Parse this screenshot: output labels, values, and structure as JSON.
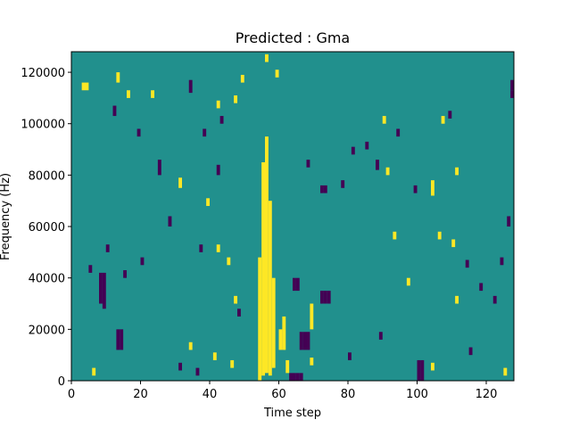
{
  "chart_data": {
    "type": "heatmap",
    "title": "Predicted : Gma",
    "xlabel": "Time step",
    "ylabel": "Frequency (Hz)",
    "xlim": [
      0,
      128
    ],
    "ylim": [
      0,
      128000
    ],
    "x_ticks": [
      0,
      20,
      40,
      60,
      80,
      100,
      120
    ],
    "x_tick_labels": [
      "0",
      "20",
      "40",
      "60",
      "80",
      "100",
      "120"
    ],
    "y_ticks": [
      0,
      20000,
      40000,
      60000,
      80000,
      100000,
      120000
    ],
    "y_tick_labels": [
      "0",
      "20000",
      "40000",
      "60000",
      "80000",
      "100000",
      "120000"
    ],
    "n_time_bins": 128,
    "n_freq_bins": 128,
    "colormap": "viridis",
    "background_value": 0,
    "value_colors": {
      "-1": "#440154",
      "0": "#21908d",
      "1": "#fde725"
    },
    "grid": false,
    "cells": [
      {
        "t": 54,
        "f0": 0,
        "f1": 48,
        "v": 1
      },
      {
        "t": 55,
        "f0": 2,
        "f1": 85,
        "v": 1
      },
      {
        "t": 56,
        "f0": 3,
        "f1": 95,
        "v": 1
      },
      {
        "t": 57,
        "f0": 2,
        "f1": 70,
        "v": 1
      },
      {
        "t": 58,
        "f0": 5,
        "f1": 40,
        "v": 1
      },
      {
        "t": 60,
        "f0": 12,
        "f1": 20,
        "v": 1
      },
      {
        "t": 61,
        "f0": 12,
        "f1": 25,
        "v": 1
      },
      {
        "t": 62,
        "f0": 3,
        "f1": 8,
        "v": 1
      },
      {
        "t": 63,
        "f0": 0,
        "f1": 3,
        "v": -1
      },
      {
        "t": 64,
        "f0": 0,
        "f1": 3,
        "v": -1
      },
      {
        "t": 65,
        "f0": 0,
        "f1": 3,
        "v": -1
      },
      {
        "t": 66,
        "f0": 0,
        "f1": 3,
        "v": -1
      },
      {
        "t": 66,
        "f0": 12,
        "f1": 19,
        "v": -1
      },
      {
        "t": 67,
        "f0": 12,
        "f1": 19,
        "v": -1
      },
      {
        "t": 68,
        "f0": 12,
        "f1": 19,
        "v": -1
      },
      {
        "t": 69,
        "f0": 6,
        "f1": 9,
        "v": 1
      },
      {
        "t": 69,
        "f0": 20,
        "f1": 30,
        "v": 1
      },
      {
        "t": 72,
        "f0": 30,
        "f1": 35,
        "v": -1
      },
      {
        "t": 73,
        "f0": 30,
        "f1": 35,
        "v": -1
      },
      {
        "t": 74,
        "f0": 30,
        "f1": 35,
        "v": -1
      },
      {
        "t": 72,
        "f0": 73,
        "f1": 76,
        "v": -1
      },
      {
        "t": 73,
        "f0": 73,
        "f1": 76,
        "v": -1
      },
      {
        "t": 64,
        "f0": 35,
        "f1": 40,
        "v": -1
      },
      {
        "t": 65,
        "f0": 35,
        "f1": 40,
        "v": -1
      },
      {
        "t": 8,
        "f0": 30,
        "f1": 42,
        "v": -1
      },
      {
        "t": 9,
        "f0": 28,
        "f1": 42,
        "v": -1
      },
      {
        "t": 13,
        "f0": 12,
        "f1": 20,
        "v": -1
      },
      {
        "t": 14,
        "f0": 12,
        "f1": 20,
        "v": -1
      },
      {
        "t": 100,
        "f0": 0,
        "f1": 8,
        "v": -1
      },
      {
        "t": 101,
        "f0": 0,
        "f1": 8,
        "v": -1
      },
      {
        "t": 127,
        "f0": 113,
        "f1": 117,
        "v": -1
      },
      {
        "t": 3,
        "f0": 113,
        "f1": 116,
        "v": 1
      },
      {
        "t": 4,
        "f0": 113,
        "f1": 116,
        "v": 1
      },
      {
        "t": 13,
        "f0": 116,
        "f1": 120,
        "v": 1
      },
      {
        "t": 49,
        "f0": 116,
        "f1": 119,
        "v": 1
      },
      {
        "t": 59,
        "f0": 118,
        "f1": 121,
        "v": 1
      },
      {
        "t": 56,
        "f0": 124,
        "f1": 127,
        "v": 1
      },
      {
        "t": 42,
        "f0": 106,
        "f1": 109,
        "v": 1
      },
      {
        "t": 47,
        "f0": 108,
        "f1": 111,
        "v": 1
      },
      {
        "t": 90,
        "f0": 100,
        "f1": 103,
        "v": 1
      },
      {
        "t": 107,
        "f0": 100,
        "f1": 103,
        "v": 1
      },
      {
        "t": 91,
        "f0": 80,
        "f1": 83,
        "v": 1
      },
      {
        "t": 104,
        "f0": 72,
        "f1": 78,
        "v": 1
      },
      {
        "t": 111,
        "f0": 80,
        "f1": 83,
        "v": 1
      },
      {
        "t": 93,
        "f0": 55,
        "f1": 58,
        "v": 1
      },
      {
        "t": 106,
        "f0": 55,
        "f1": 58,
        "v": 1
      },
      {
        "t": 110,
        "f0": 52,
        "f1": 55,
        "v": 1
      },
      {
        "t": 97,
        "f0": 37,
        "f1": 40,
        "v": 1
      },
      {
        "t": 111,
        "f0": 30,
        "f1": 33,
        "v": 1
      },
      {
        "t": 16,
        "f0": 110,
        "f1": 113,
        "v": 1
      },
      {
        "t": 23,
        "f0": 110,
        "f1": 113,
        "v": 1
      },
      {
        "t": 31,
        "f0": 75,
        "f1": 79,
        "v": 1
      },
      {
        "t": 39,
        "f0": 68,
        "f1": 71,
        "v": 1
      },
      {
        "t": 42,
        "f0": 50,
        "f1": 53,
        "v": 1
      },
      {
        "t": 45,
        "f0": 45,
        "f1": 48,
        "v": 1
      },
      {
        "t": 47,
        "f0": 30,
        "f1": 33,
        "v": 1
      },
      {
        "t": 34,
        "f0": 12,
        "f1": 15,
        "v": 1
      },
      {
        "t": 41,
        "f0": 8,
        "f1": 11,
        "v": 1
      },
      {
        "t": 46,
        "f0": 5,
        "f1": 8,
        "v": 1
      },
      {
        "t": 104,
        "f0": 4,
        "f1": 7,
        "v": 1
      },
      {
        "t": 125,
        "f0": 2,
        "f1": 5,
        "v": 1
      },
      {
        "t": 6,
        "f0": 2,
        "f1": 5,
        "v": 1
      },
      {
        "t": 12,
        "f0": 103,
        "f1": 107,
        "v": -1
      },
      {
        "t": 19,
        "f0": 95,
        "f1": 98,
        "v": -1
      },
      {
        "t": 25,
        "f0": 80,
        "f1": 86,
        "v": -1
      },
      {
        "t": 34,
        "f0": 112,
        "f1": 117,
        "v": -1
      },
      {
        "t": 38,
        "f0": 95,
        "f1": 98,
        "v": -1
      },
      {
        "t": 42,
        "f0": 80,
        "f1": 84,
        "v": -1
      },
      {
        "t": 43,
        "f0": 100,
        "f1": 103,
        "v": -1
      },
      {
        "t": 68,
        "f0": 83,
        "f1": 86,
        "v": -1
      },
      {
        "t": 78,
        "f0": 75,
        "f1": 78,
        "v": -1
      },
      {
        "t": 81,
        "f0": 88,
        "f1": 91,
        "v": -1
      },
      {
        "t": 85,
        "f0": 90,
        "f1": 93,
        "v": -1
      },
      {
        "t": 88,
        "f0": 82,
        "f1": 86,
        "v": -1
      },
      {
        "t": 94,
        "f0": 95,
        "f1": 98,
        "v": -1
      },
      {
        "t": 99,
        "f0": 73,
        "f1": 76,
        "v": -1
      },
      {
        "t": 109,
        "f0": 102,
        "f1": 105,
        "v": -1
      },
      {
        "t": 114,
        "f0": 44,
        "f1": 47,
        "v": -1
      },
      {
        "t": 118,
        "f0": 35,
        "f1": 38,
        "v": -1
      },
      {
        "t": 124,
        "f0": 45,
        "f1": 48,
        "v": -1
      },
      {
        "t": 126,
        "f0": 60,
        "f1": 64,
        "v": -1
      },
      {
        "t": 127,
        "f0": 110,
        "f1": 113,
        "v": -1
      },
      {
        "t": 5,
        "f0": 42,
        "f1": 45,
        "v": -1
      },
      {
        "t": 10,
        "f0": 50,
        "f1": 53,
        "v": -1
      },
      {
        "t": 15,
        "f0": 40,
        "f1": 43,
        "v": -1
      },
      {
        "t": 20,
        "f0": 45,
        "f1": 48,
        "v": -1
      },
      {
        "t": 28,
        "f0": 60,
        "f1": 64,
        "v": -1
      },
      {
        "t": 37,
        "f0": 50,
        "f1": 53,
        "v": -1
      },
      {
        "t": 48,
        "f0": 25,
        "f1": 28,
        "v": -1
      },
      {
        "t": 31,
        "f0": 4,
        "f1": 7,
        "v": -1
      },
      {
        "t": 36,
        "f0": 2,
        "f1": 5,
        "v": -1
      },
      {
        "t": 80,
        "f0": 8,
        "f1": 11,
        "v": -1
      },
      {
        "t": 89,
        "f0": 16,
        "f1": 19,
        "v": -1
      },
      {
        "t": 115,
        "f0": 10,
        "f1": 13,
        "v": -1
      },
      {
        "t": 122,
        "f0": 30,
        "f1": 33,
        "v": -1
      }
    ]
  }
}
